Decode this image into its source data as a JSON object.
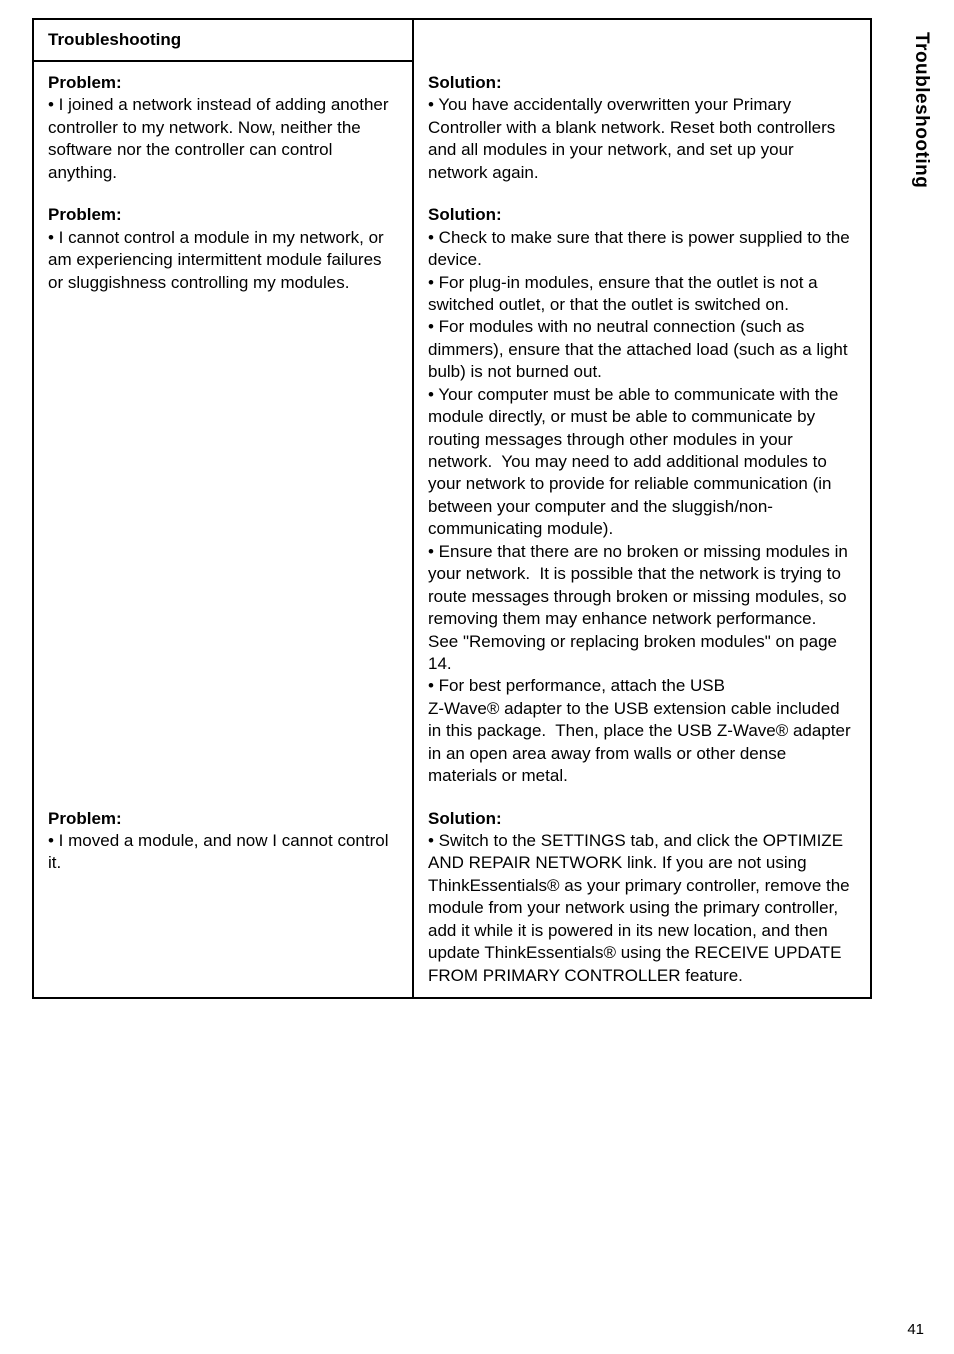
{
  "header": {
    "title": "Troubleshooting"
  },
  "sideTab": "Troubleshooting",
  "pageNumber": "41",
  "rows": [
    {
      "problemHead": "Problem:",
      "problemBody": "• I joined a network instead of adding another controller to my network.  Now, neither the software nor the controller can control anything.",
      "solutionHead": "Solution:",
      "solutionBody": "• You have accidentally overwritten your Primary Controller with a blank network.  Reset both controllers and all modules in your network, and set up your network again."
    },
    {
      "problemHead": "Problem:",
      "problemBody": "• I cannot control a module in my network, or am experiencing intermittent module failures or sluggishness controlling my modules.",
      "solutionHead": "Solution:",
      "solutionBody": "• Check to make sure that there is power supplied to the device.\n• For plug-in modules, ensure that the outlet is not a switched outlet, or that the outlet is switched on.\n• For modules with no neutral connection (such as dimmers), ensure that the attached load (such as a light bulb) is not burned out.\n• Your computer must be able to communicate with the module directly, or must be able to communicate by routing messages through other modules in your network.  You may need to add additional modules to your network to provide for reliable communication (in between your computer and the sluggish/non-communicating module).\n• Ensure that there are no broken or missing modules in your network.  It is possible that the network is trying to route messages through broken or missing modules, so removing them may enhance network performance.  See \"Removing or replacing broken modules\" on page 14.\n• For best performance, attach the USB\nZ-Wave® adapter to the USB extension cable included in this package.  Then, place the USB Z-Wave® adapter in an open area away from walls or other dense materials or metal."
    },
    {
      "problemHead": "Problem:",
      "problemBody": "• I moved a module, and now I cannot control it.",
      "solutionHead": "Solution:",
      "solutionBody": "• Switch to the SETTINGS tab, and click the OPTIMIZE AND REPAIR NETWORK link.  If you are not using ThinkEssentials® as your primary controller, remove the module from your network using the primary controller, add it while it is powered in its new location, and then update ThinkEssentials® using the RECEIVE UPDATE FROM PRIMARY CONTROLLER feature."
    }
  ]
}
